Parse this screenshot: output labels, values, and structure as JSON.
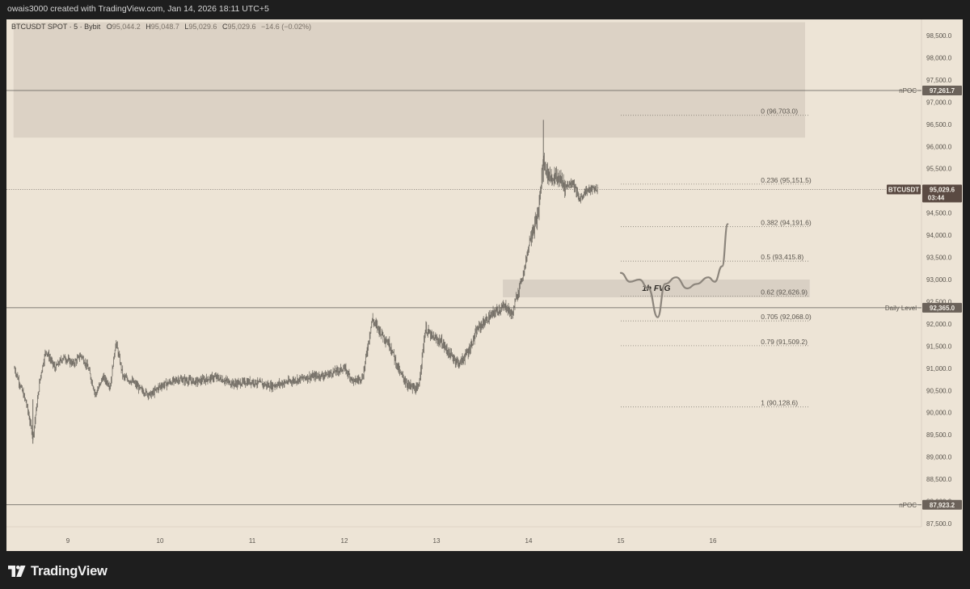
{
  "header": {
    "attribution": "owais3000 created with TradingView.com, Jan 14, 2026 18:11 UTC+5"
  },
  "legend": {
    "symbol": "BTCUSDT SPOT · 5 · Bybit",
    "o_label": "O",
    "o_value": "95,044.2",
    "h_label": "H",
    "h_value": "95,048.7",
    "l_label": "L",
    "l_value": "95,029.6",
    "c_label": "C",
    "c_value": "95,029.6",
    "change": "−14.6 (−0.02%)"
  },
  "footer": {
    "brand": "TradingView"
  },
  "colors": {
    "chart_bg": "#ede4d6",
    "zone": "#dcd2c5",
    "fvg": "#d8cfc3",
    "candle": "#6f6a62",
    "level_line": "#5d5a55",
    "badge_bg": "#6b625a",
    "current_badge_bg": "#5a4a42"
  },
  "chart_data": {
    "type": "candlestick",
    "symbol": "BTCUSDT",
    "timeframe": "5",
    "exchange": "Bybit",
    "y_ticks": [
      87500,
      88000,
      88500,
      89000,
      89500,
      90000,
      90500,
      91000,
      91500,
      92000,
      92500,
      93000,
      93500,
      94000,
      94500,
      95000,
      95500,
      96000,
      96500,
      97000,
      97500,
      98000,
      98500
    ],
    "y_tick_labels": [
      "87,500.0",
      "88,000.0",
      "88,500.0",
      "89,000.0",
      "89,500.0",
      "90,000.0",
      "90,500.0",
      "91,000.0",
      "91,500.0",
      "92,000.0",
      "92,500.0",
      "93,000.0",
      "93,500.0",
      "94,000.0",
      "94,500.0",
      "95,000.0",
      "95,500.0",
      "96,000.0",
      "96,500.0",
      "97,000.0",
      "97,500.0",
      "98,000.0",
      "98,500.0"
    ],
    "x_ticks": [
      9,
      10,
      11,
      12,
      13,
      14,
      15,
      16
    ],
    "x_tick_labels": [
      "9",
      "10",
      "11",
      "12",
      "13",
      "14",
      "15",
      "16"
    ],
    "ylim": [
      87000,
      98800
    ],
    "xlim": [
      8.41,
      17.0
    ],
    "price_path": [
      [
        8.42,
        91000
      ],
      [
        8.55,
        90200
      ],
      [
        8.62,
        89450
      ],
      [
        8.7,
        90800
      ],
      [
        8.76,
        91400
      ],
      [
        8.86,
        91000
      ],
      [
        8.95,
        91250
      ],
      [
        9.06,
        91100
      ],
      [
        9.14,
        91300
      ],
      [
        9.22,
        91000
      ],
      [
        9.3,
        90400
      ],
      [
        9.38,
        90800
      ],
      [
        9.46,
        90600
      ],
      [
        9.52,
        91600
      ],
      [
        9.6,
        90800
      ],
      [
        9.7,
        90700
      ],
      [
        9.8,
        90500
      ],
      [
        9.9,
        90400
      ],
      [
        10.0,
        90600
      ],
      [
        10.2,
        90750
      ],
      [
        10.4,
        90700
      ],
      [
        10.6,
        90800
      ],
      [
        10.8,
        90650
      ],
      [
        11.0,
        90700
      ],
      [
        11.2,
        90600
      ],
      [
        11.4,
        90700
      ],
      [
        11.6,
        90800
      ],
      [
        11.8,
        90850
      ],
      [
        12.0,
        91000
      ],
      [
        12.1,
        90700
      ],
      [
        12.2,
        90800
      ],
      [
        12.3,
        92100
      ],
      [
        12.4,
        91800
      ],
      [
        12.5,
        91500
      ],
      [
        12.6,
        90900
      ],
      [
        12.7,
        90600
      ],
      [
        12.8,
        90500
      ],
      [
        12.88,
        91900
      ],
      [
        12.95,
        91700
      ],
      [
        13.05,
        91600
      ],
      [
        13.15,
        91300
      ],
      [
        13.25,
        91100
      ],
      [
        13.35,
        91400
      ],
      [
        13.45,
        91900
      ],
      [
        13.55,
        92100
      ],
      [
        13.65,
        92300
      ],
      [
        13.75,
        92400
      ],
      [
        13.82,
        92200
      ],
      [
        13.88,
        92700
      ],
      [
        13.95,
        93200
      ],
      [
        14.02,
        94000
      ],
      [
        14.1,
        94400
      ],
      [
        14.16,
        95700
      ],
      [
        14.2,
        95400
      ],
      [
        14.25,
        95300
      ],
      [
        14.32,
        95300
      ],
      [
        14.4,
        95100
      ],
      [
        14.48,
        95200
      ],
      [
        14.55,
        94800
      ],
      [
        14.62,
        95000
      ],
      [
        14.7,
        95050
      ],
      [
        14.76,
        95029.6
      ]
    ],
    "session_high": 96600,
    "session_low": 89300,
    "last_price": 95029.6,
    "current_label": "BTCUSDT",
    "current_price_label": "95,029.6",
    "countdown": "03:44",
    "horizontal_levels": [
      {
        "name": "nPOC",
        "price": 97261.7,
        "label": "97,261.7"
      },
      {
        "name": "Daily Level",
        "price": 92365.0,
        "label": "92,365.0"
      },
      {
        "name": "nPOC",
        "price": 87923.2,
        "label": "87,923.2"
      }
    ],
    "zones": [
      {
        "from_x": 8.41,
        "to_x": 17.0,
        "low": 96200,
        "high": 98800
      },
      {
        "from_x": 13.72,
        "to_x": 17.05,
        "low": 92600,
        "high": 93000,
        "label": "1h FVG"
      }
    ],
    "fibonacci": [
      {
        "label": "0 (96,703.0)",
        "price": 96703.0
      },
      {
        "label": "0.236 (95,151.5)",
        "price": 95151.5
      },
      {
        "label": "0.382 (94,191.6)",
        "price": 94191.6
      },
      {
        "label": "0.5 (93,415.8)",
        "price": 93415.8
      },
      {
        "label": "0.62 (92,626.9)",
        "price": 92626.9
      },
      {
        "label": "0.705 (92,068.0)",
        "price": 92068.0
      },
      {
        "label": "0.79 (91,509.2)",
        "price": 91509.2
      },
      {
        "label": "1 (90,128.6)",
        "price": 90128.6
      }
    ],
    "fib_x_range": [
      15.0,
      17.05
    ],
    "projection_path": [
      [
        15.0,
        93150
      ],
      [
        15.1,
        92950
      ],
      [
        15.2,
        93000
      ],
      [
        15.3,
        92800
      ],
      [
        15.4,
        92150
      ],
      [
        15.48,
        92900
      ],
      [
        15.6,
        93050
      ],
      [
        15.72,
        92800
      ],
      [
        15.82,
        92900
      ],
      [
        15.95,
        93050
      ],
      [
        16.02,
        92950
      ],
      [
        16.1,
        93300
      ],
      [
        16.16,
        94250
      ]
    ]
  }
}
